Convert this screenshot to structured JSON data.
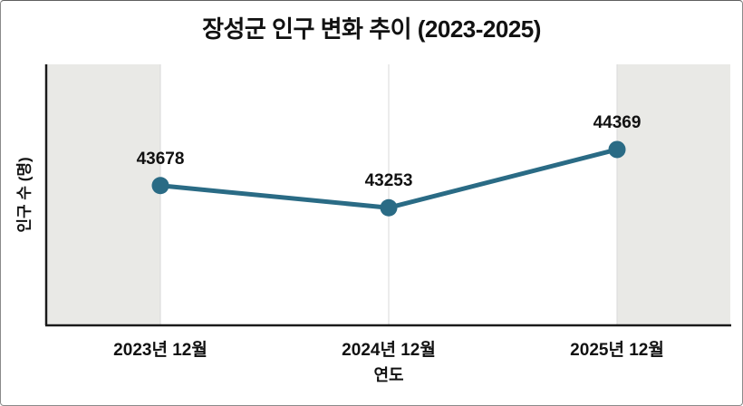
{
  "chart_data": {
    "type": "line",
    "title": "장성군 인구 변화 추이 (2023-2025)",
    "xlabel": "연도",
    "ylabel": "인구 수 (명)",
    "categories": [
      "2023년 12월",
      "2024년 12월",
      "2025년 12월"
    ],
    "values": [
      43678,
      43253,
      44369
    ],
    "ylim": [
      41000,
      46000
    ],
    "xlim": [
      -0.5,
      2.5
    ],
    "grid": "faint vertical gridline at each category",
    "legend": "none",
    "y_tick_labels": "none",
    "margin_bands": "light gray shaded regions left of first point and right of last point",
    "colors": {
      "line": "#2a6b85",
      "marker": "#2a6b85",
      "margin_band": "#e9e9e6",
      "gridline": "#d9d9d9",
      "axis": "#1a1a1a",
      "text": "#111111",
      "background": "#ffffff"
    }
  }
}
